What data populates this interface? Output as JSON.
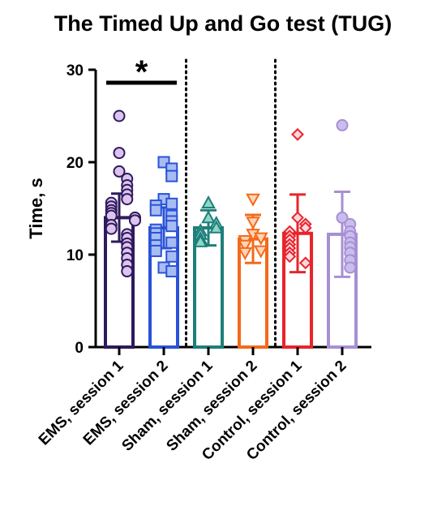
{
  "chart_data": {
    "type": "bar",
    "title": "The Timed Up and Go test (TUG)",
    "ylabel": "Time, s",
    "xlabel": "",
    "ylim": [
      0,
      30
    ],
    "yticks": [
      0,
      10,
      20,
      30
    ],
    "grid": false,
    "legend": "none",
    "categories": [
      "EMS, session 1",
      "EMS, session 2",
      "Sham, session 1",
      "Sham, session 2",
      "Control, session 1",
      "Control, session 2"
    ],
    "values": [
      14.0,
      12.9,
      12.9,
      11.7,
      12.3,
      12.2
    ],
    "error": [
      2.6,
      2.2,
      1.9,
      2.6,
      4.2,
      4.6
    ],
    "colors": [
      "#2e1a5c",
      "#2a52d8",
      "#1e7f7a",
      "#f26a1b",
      "#e8242b",
      "#a78fd3"
    ],
    "marker_fills": [
      "#dcc4ee",
      "#a7bdf2",
      "#8fd6c8",
      "#ffd3b6",
      "#ffd6dd",
      "#c9bdee"
    ],
    "markers": [
      "circle",
      "square",
      "triangle-up",
      "triangle-down",
      "diamond",
      "circle"
    ],
    "points": [
      [
        25,
        21,
        19,
        18.2,
        17.5,
        17,
        16.5,
        16,
        15.6,
        15.2,
        14.8,
        14.5,
        14.2,
        14,
        13.7,
        13.2,
        12.8,
        12.2,
        11.8,
        11.2,
        10.8,
        10.2,
        9.6,
        8.9,
        8.2
      ],
      [
        20,
        19.3,
        18.5,
        16,
        15.5,
        15.3,
        14.8,
        14.2,
        13.6,
        13.1,
        12.7,
        12.3,
        11.8,
        11.3,
        11.0,
        10.4,
        9.8,
        8.6,
        8.2
      ],
      [
        15.6,
        14,
        13.4,
        12.9,
        12.6,
        12.2,
        11.7,
        11.4
      ],
      [
        16,
        13.5,
        12.2,
        11.8,
        11.5,
        11,
        10.4,
        10.2
      ],
      [
        23,
        14,
        13.3,
        12.9,
        12.5,
        12.0,
        11.6,
        11.1,
        10.7,
        10.2,
        9.8,
        9.1
      ],
      [
        24,
        14,
        13.3,
        12.5,
        12.0,
        11.3,
        10.8,
        10.2,
        9.4,
        8.6
      ]
    ],
    "significance": {
      "between": [
        0,
        1
      ],
      "label": "*"
    },
    "separators_after": [
      1,
      3
    ]
  }
}
